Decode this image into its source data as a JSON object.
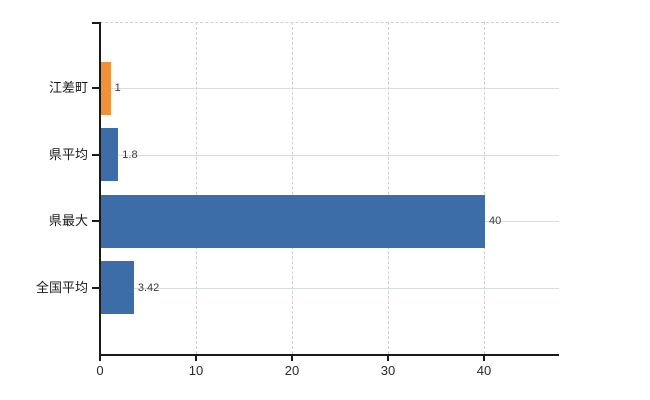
{
  "chart_data": {
    "type": "bar",
    "orientation": "horizontal",
    "title": "",
    "xlabel": "",
    "ylabel": "",
    "categories": [
      "江差町",
      "県平均",
      "県最大",
      "全国平均"
    ],
    "values": [
      1,
      1.8,
      40,
      3.42
    ],
    "value_labels": [
      "1",
      "1.8",
      "40",
      "3.42"
    ],
    "x_ticks": [
      0,
      10,
      20,
      30,
      40
    ],
    "x_tick_labels": [
      "0",
      "10",
      "20",
      "30",
      "40"
    ],
    "xlim": [
      0,
      47.8
    ],
    "grid": true,
    "legend_position": "none",
    "bar_colors": [
      "#ee9138",
      "#3d6da8",
      "#3d6da8",
      "#3d6da8"
    ]
  },
  "colors": {
    "highlight_bar": "#ee9138",
    "default_bar": "#3d6da8",
    "h_gridline": "#d8ded8",
    "v_gridline": "#cfcfcf",
    "axis": "#1a1a1a",
    "background": "#ffffff"
  }
}
